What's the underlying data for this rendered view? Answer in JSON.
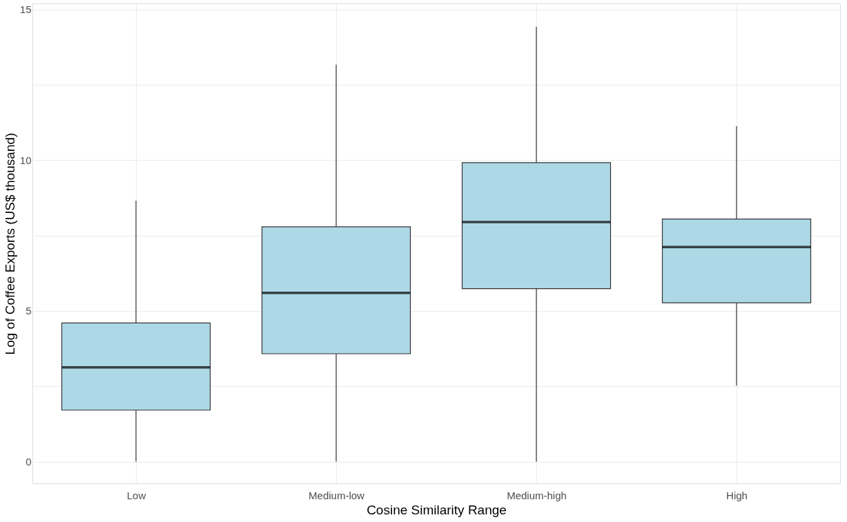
{
  "chart_data": {
    "type": "box",
    "xlabel": "Cosine Similarity Range",
    "ylabel": "Log of Coffee Exports (US$ thousand)",
    "categories": [
      "Low",
      "Medium-low",
      "Medium-high",
      "High"
    ],
    "series": [
      {
        "color": "#add8e6",
        "boxes": [
          {
            "low": 0,
            "q1": 1.71,
            "median": 3.13,
            "q3": 4.6,
            "high": 8.66
          },
          {
            "low": 0,
            "q1": 3.58,
            "median": 5.6,
            "q3": 7.79,
            "high": 13.17
          },
          {
            "low": 0,
            "q1": 5.74,
            "median": 7.95,
            "q3": 9.92,
            "high": 14.43
          },
          {
            "low": 2.52,
            "q1": 5.27,
            "median": 7.12,
            "q3": 8.05,
            "high": 11.13
          }
        ]
      }
    ],
    "ylim": [
      -0.72,
      15.2
    ],
    "yticks": [
      0,
      {
        "value": 2.5,
        "label": null
      },
      5,
      {
        "value": 7.5,
        "label": null
      },
      10,
      {
        "value": 12.5,
        "label": null
      },
      15
    ],
    "grid": true
  }
}
